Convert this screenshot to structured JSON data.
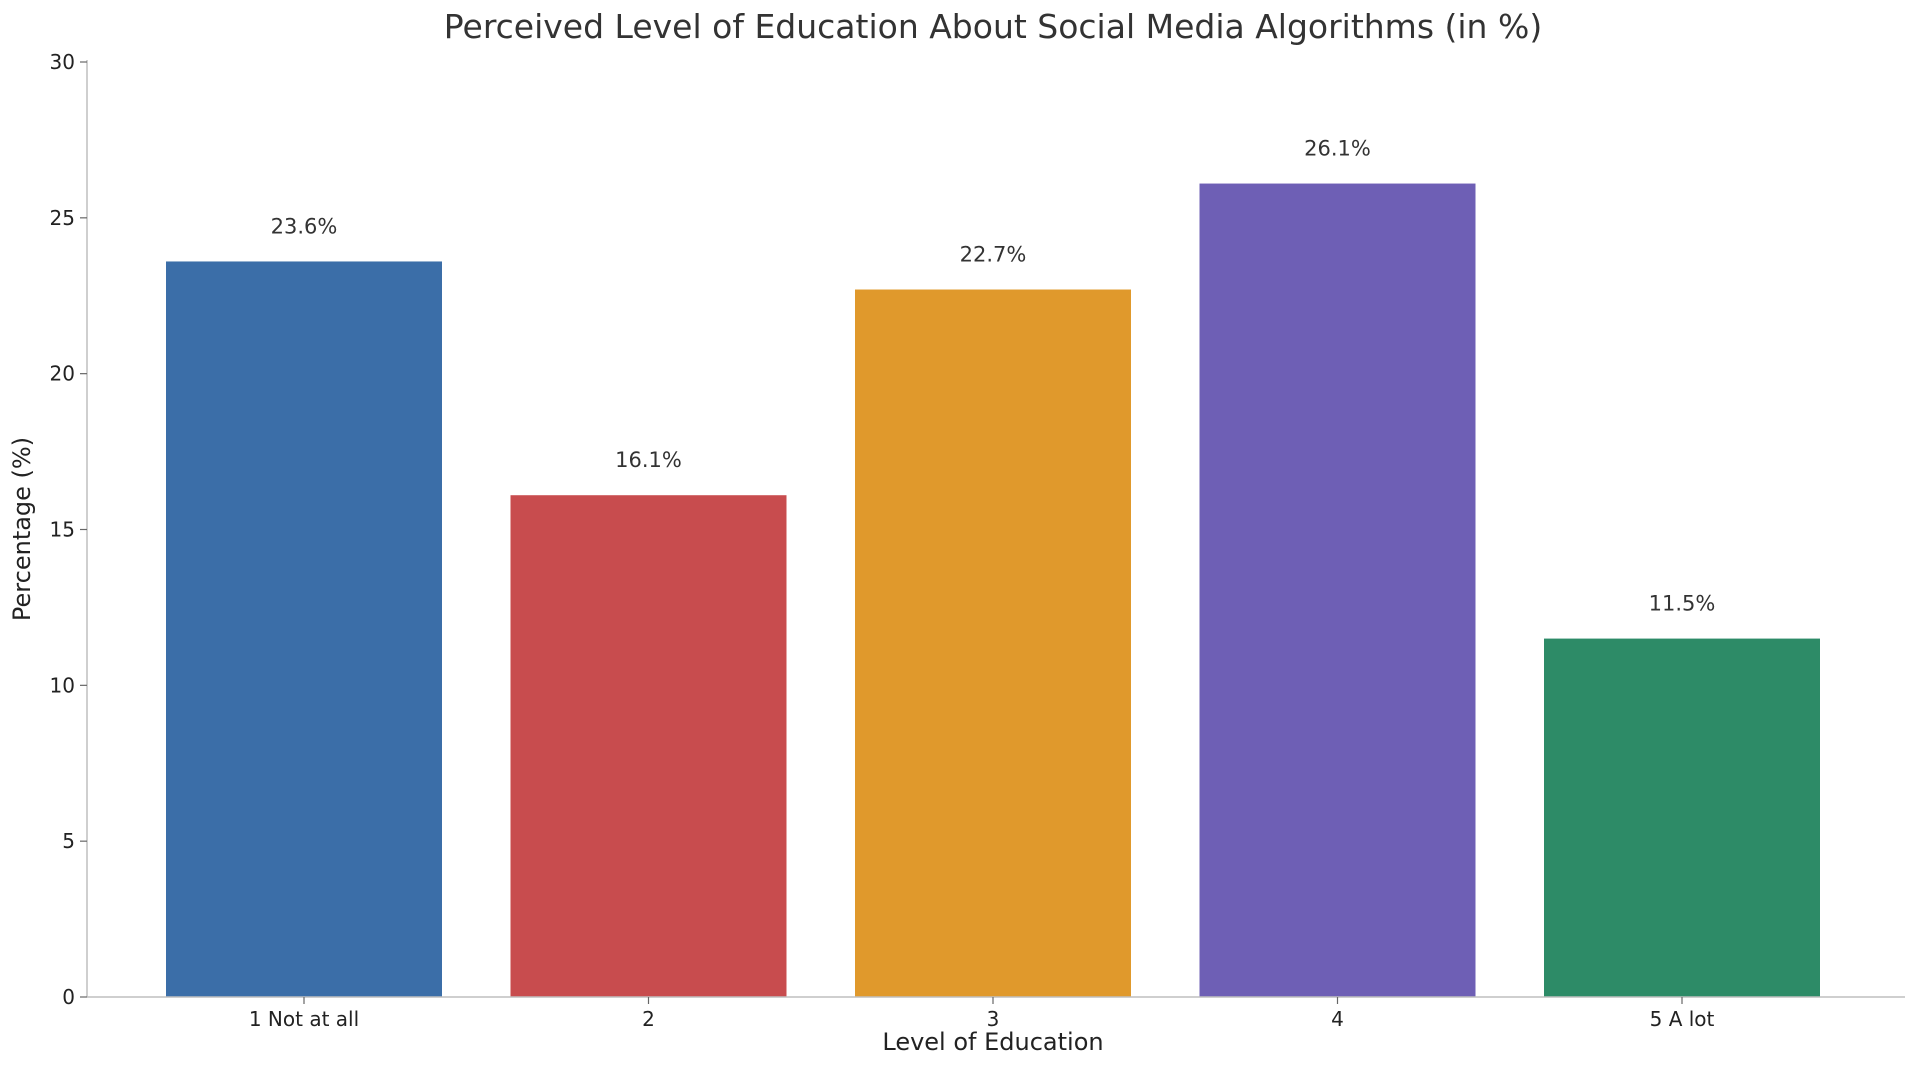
{
  "chart_data": {
    "type": "bar",
    "title": "Perceived Level of Education About Social Media Algorithms (in %)",
    "xlabel": "Level of Education",
    "ylabel": "Percentage (%)",
    "categories": [
      "1 Not at all",
      "2",
      "3",
      "4",
      "5 A lot"
    ],
    "values": [
      23.6,
      16.1,
      22.7,
      26.1,
      11.5
    ],
    "data_labels": [
      "23.6%",
      "16.1%",
      "22.7%",
      "26.1%",
      "11.5%"
    ],
    "colors": [
      "#3b6ea8",
      "#c84c4e",
      "#e0992c",
      "#6e5fb5",
      "#2d8b67"
    ],
    "ylim": [
      0,
      30
    ],
    "yticks": [
      0,
      5,
      10,
      15,
      20,
      25,
      30
    ],
    "grid": false,
    "legend": "none"
  }
}
